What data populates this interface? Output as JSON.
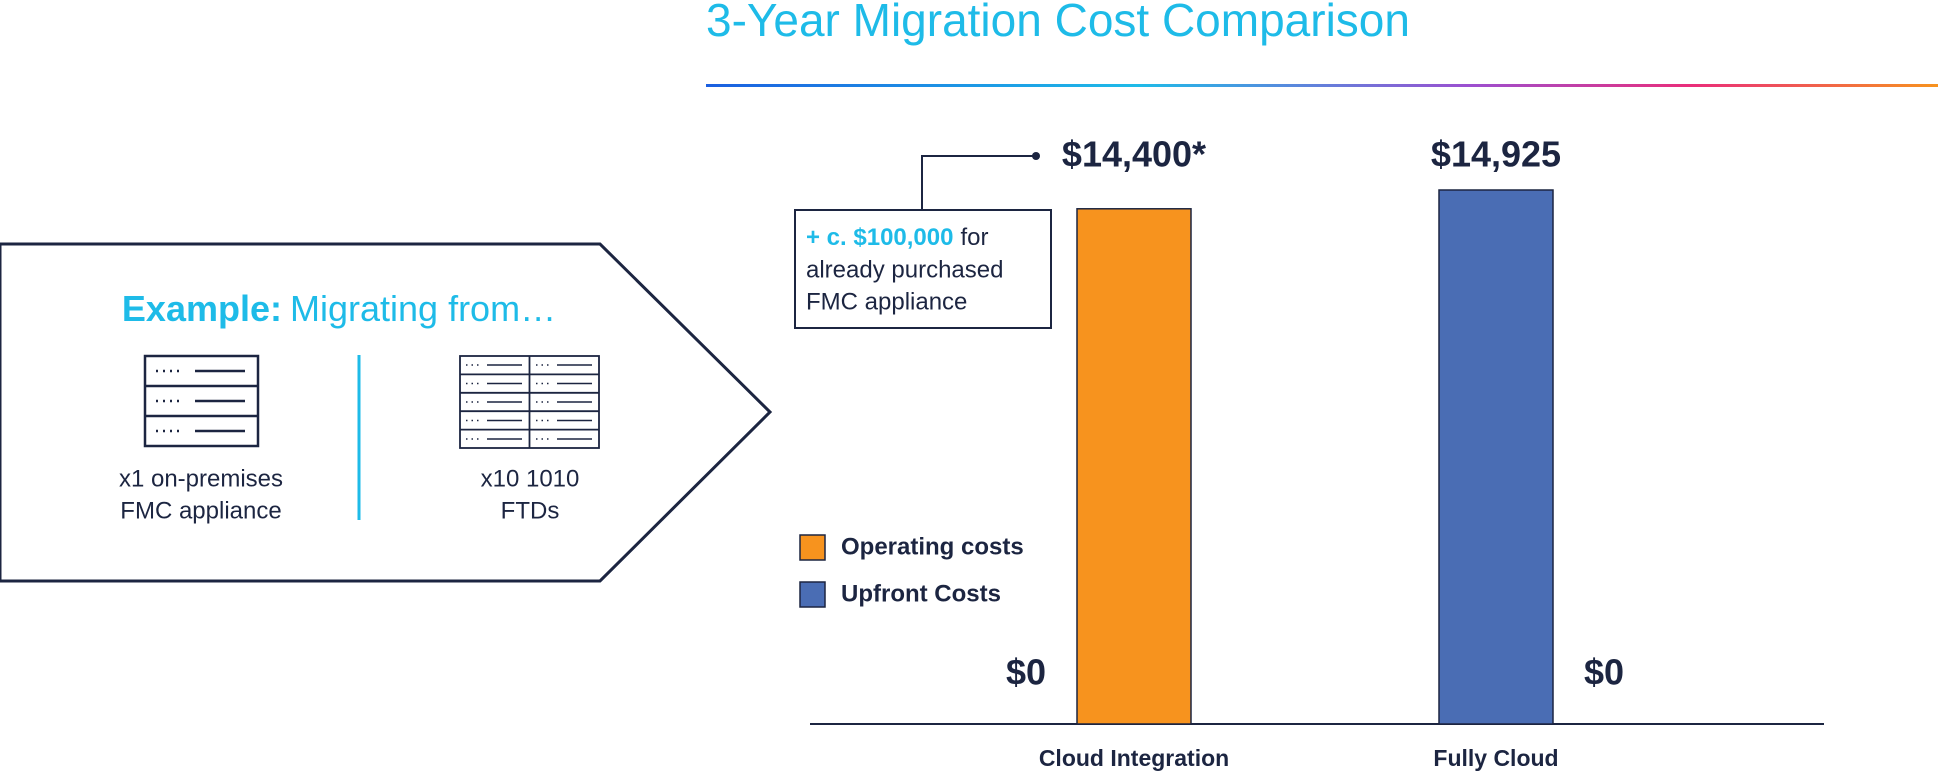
{
  "panel": {
    "heading": {
      "label": "Example:",
      "text": "Migrating from…"
    },
    "items": [
      {
        "lines": [
          "x1 on-premises",
          "FMC appliance"
        ]
      },
      {
        "lines": [
          "x10 1010",
          "FTDs"
        ]
      }
    ]
  },
  "chart_data": {
    "type": "bar",
    "title": "3-Year Migration Cost Comparison",
    "categories": [
      "Cloud Integration",
      "Fully Cloud"
    ],
    "series": [
      {
        "name": "Operating costs",
        "color": "#f7931e",
        "values": [
          14400,
          0
        ],
        "value_labels": [
          "$14,400*",
          "$0"
        ]
      },
      {
        "name": "Upfront Costs",
        "color": "#4a6db4",
        "values": [
          0,
          14925
        ],
        "value_labels": [
          "$0",
          "$14,925"
        ]
      }
    ],
    "annotation": {
      "highlight": "+ c. $100,000",
      "lines": [
        "for",
        "already purchased",
        "FMC appliance"
      ]
    }
  }
}
